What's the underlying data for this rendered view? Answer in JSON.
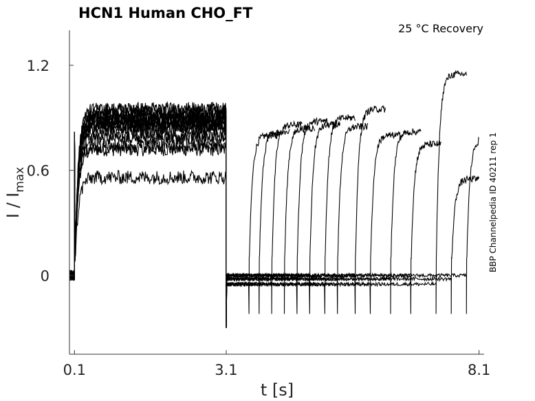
{
  "chart_data": {
    "type": "line",
    "title": "HCN1  Human  CHO_FT",
    "subtitle": "25 °C  Recovery",
    "xlabel": "t [s]",
    "ylabel_main": "I / I",
    "ylabel_sub": "max",
    "side_note": "BBP Channelpedia ID 40211 rep 1",
    "xlim": [
      0.0,
      8.2
    ],
    "ylim": [
      -0.45,
      1.4
    ],
    "x_ticks": [
      {
        "value": 0.1,
        "label": "0.1"
      },
      {
        "value": 3.1,
        "label": "3.1"
      },
      {
        "value": 8.1,
        "label": "8.1"
      }
    ],
    "y_ticks": [
      {
        "value": 0,
        "label": "0"
      },
      {
        "value": 0.6,
        "label": "0.6"
      },
      {
        "value": 1.2,
        "label": "1.2"
      }
    ],
    "grid": false,
    "series": [
      {
        "recovery_interval_end": 3.55,
        "conditioning_plateau": 0.72,
        "test_plateau": 0.8
      },
      {
        "recovery_interval_end": 3.75,
        "conditioning_plateau": 0.78,
        "test_plateau": 0.82
      },
      {
        "recovery_interval_end": 4.0,
        "conditioning_plateau": 0.88,
        "test_plateau": 0.86
      },
      {
        "recovery_interval_end": 4.25,
        "conditioning_plateau": 0.84,
        "test_plateau": 0.84
      },
      {
        "recovery_interval_end": 4.5,
        "conditioning_plateau": 0.9,
        "test_plateau": 0.88
      },
      {
        "recovery_interval_end": 4.75,
        "conditioning_plateau": 0.85,
        "test_plateau": 0.86
      },
      {
        "recovery_interval_end": 5.05,
        "conditioning_plateau": 0.92,
        "test_plateau": 0.9
      },
      {
        "recovery_interval_end": 5.3,
        "conditioning_plateau": 0.86,
        "test_plateau": 0.85
      },
      {
        "recovery_interval_end": 5.65,
        "conditioning_plateau": 0.94,
        "test_plateau": 0.95
      },
      {
        "recovery_interval_end": 5.95,
        "conditioning_plateau": 0.88,
        "test_plateau": 0.8
      },
      {
        "recovery_interval_end": 6.35,
        "conditioning_plateau": 0.9,
        "test_plateau": 0.82
      },
      {
        "recovery_interval_end": 6.75,
        "conditioning_plateau": 0.95,
        "test_plateau": 0.75
      },
      {
        "recovery_interval_end": 7.25,
        "conditioning_plateau": 0.8,
        "test_plateau": 1.15
      },
      {
        "recovery_interval_end": 7.55,
        "conditioning_plateau": 0.56,
        "test_plateau": 0.55
      },
      {
        "recovery_interval_end": 7.85,
        "conditioning_plateau": 0.74,
        "test_plateau": 0.78
      }
    ]
  }
}
